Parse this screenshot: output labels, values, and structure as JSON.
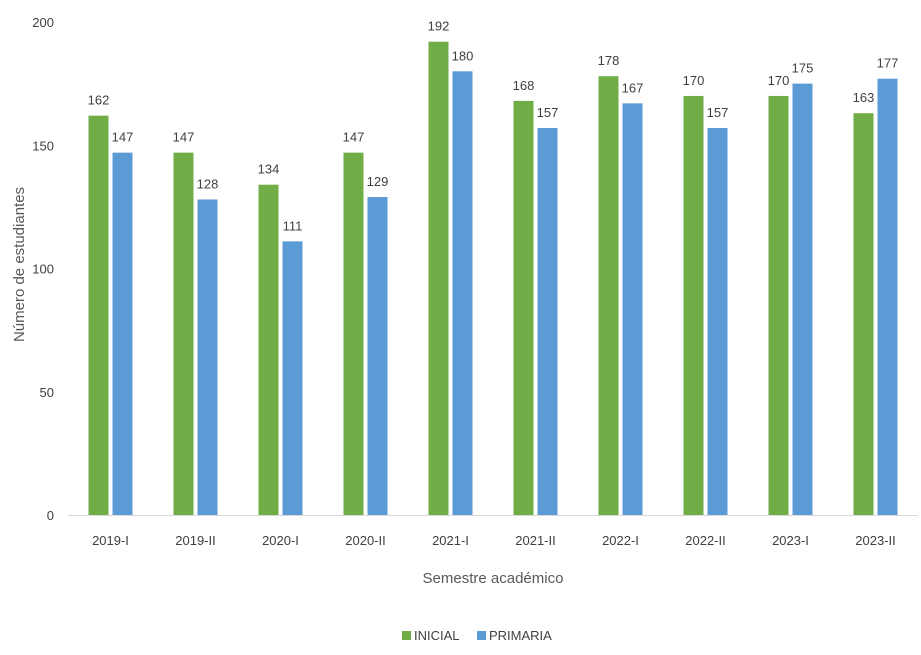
{
  "chart_data": {
    "type": "bar",
    "title": "",
    "xlabel": "Semestre académico",
    "ylabel": "Número de estudiantes",
    "ylim": [
      0,
      200
    ],
    "yticks": [
      0,
      50,
      100,
      150,
      200
    ],
    "grid": false,
    "legend_position": "bottom",
    "categories": [
      "2019-I",
      "2019-II",
      "2020-I",
      "2020-II",
      "2021-I",
      "2021-II",
      "2022-I",
      "2022-II",
      "2023-I",
      "2023-II"
    ],
    "series": [
      {
        "name": "INICIAL",
        "color": "#70ad47",
        "values": [
          162,
          147,
          134,
          147,
          192,
          168,
          178,
          170,
          170,
          163
        ]
      },
      {
        "name": "PRIMARIA",
        "color": "#5b9bd5",
        "values": [
          147,
          128,
          111,
          129,
          180,
          157,
          167,
          157,
          175,
          177
        ]
      }
    ]
  }
}
